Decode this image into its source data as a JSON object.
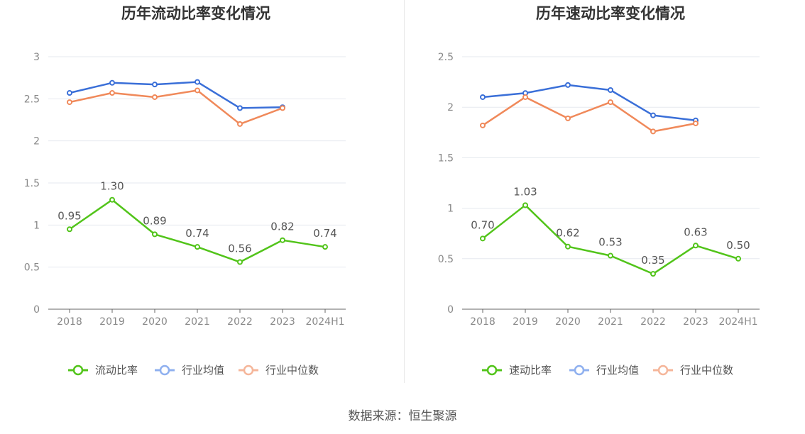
{
  "chart_data": [
    {
      "type": "line",
      "title": "历年流动比率变化情况",
      "categories": [
        "2018",
        "2019",
        "2020",
        "2021",
        "2022",
        "2023",
        "2024H1"
      ],
      "ylim": [
        0,
        3
      ],
      "yticks": [
        "0",
        "0.5",
        "1",
        "1.5",
        "2",
        "2.5",
        "3"
      ],
      "grid": true,
      "legend_position": "bottom",
      "series": [
        {
          "name": "流动比率",
          "color": "#52c41a",
          "values": [
            0.95,
            1.3,
            0.89,
            0.74,
            0.56,
            0.82,
            0.74
          ],
          "labels": [
            "0.95",
            "1.30",
            "0.89",
            "0.74",
            "0.56",
            "0.82",
            "0.74"
          ]
        },
        {
          "name": "行业均值",
          "color": "#3a6fd8",
          "legend_color": "#8fb0ef",
          "values": [
            2.57,
            2.69,
            2.67,
            2.7,
            2.39,
            2.4,
            null
          ]
        },
        {
          "name": "行业中位数",
          "color": "#f0895a",
          "legend_color": "#f5b69a",
          "values": [
            2.46,
            2.57,
            2.52,
            2.6,
            2.2,
            2.39,
            null
          ]
        }
      ]
    },
    {
      "type": "line",
      "title": "历年速动比率变化情况",
      "categories": [
        "2018",
        "2019",
        "2020",
        "2021",
        "2022",
        "2023",
        "2024H1"
      ],
      "ylim": [
        0,
        2.5
      ],
      "yticks": [
        "0",
        "0.5",
        "1",
        "1.5",
        "2",
        "2.5"
      ],
      "grid": true,
      "legend_position": "bottom",
      "series": [
        {
          "name": "速动比率",
          "color": "#52c41a",
          "values": [
            0.7,
            1.03,
            0.62,
            0.53,
            0.35,
            0.63,
            0.5
          ],
          "labels": [
            "0.70",
            "1.03",
            "0.62",
            "0.53",
            "0.35",
            "0.63",
            "0.50"
          ]
        },
        {
          "name": "行业均值",
          "color": "#3a6fd8",
          "legend_color": "#8fb0ef",
          "values": [
            2.1,
            2.14,
            2.22,
            2.17,
            1.92,
            1.87,
            null
          ]
        },
        {
          "name": "行业中位数",
          "color": "#f0895a",
          "legend_color": "#f5b69a",
          "values": [
            1.82,
            2.1,
            1.89,
            2.05,
            1.76,
            1.84,
            null
          ]
        }
      ]
    }
  ],
  "footer": {
    "source": "数据来源：恒生聚源"
  }
}
